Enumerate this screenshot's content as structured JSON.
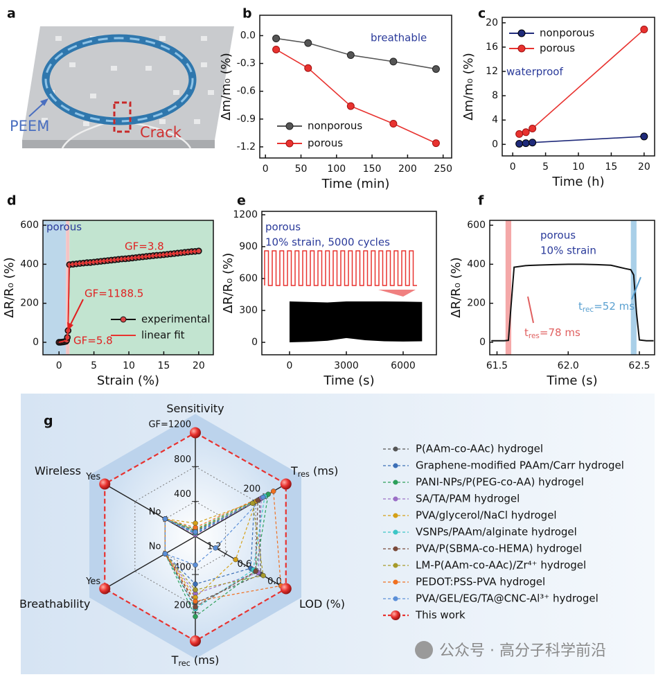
{
  "illustration": {
    "panel": "a",
    "texts": [
      "PEEM",
      "Crack"
    ]
  },
  "watermark": "公众号 · 高分子科学前沿",
  "chart_data": [
    {
      "type": "line",
      "panel": "b",
      "xlabel": "Time (min)",
      "ylabel": "Δm/m₀ (%)",
      "x": [
        15,
        60,
        120,
        180,
        240
      ],
      "series": [
        {
          "name": "nonporous",
          "color": "#555555",
          "marker": true,
          "values": [
            -0.03,
            -0.08,
            -0.21,
            -0.28,
            -0.36
          ]
        },
        {
          "name": "porous",
          "color": "#e8322f",
          "marker": true,
          "values": [
            -0.15,
            -0.35,
            -0.76,
            -0.95,
            -1.16
          ]
        }
      ],
      "xlim": [
        -8,
        262
      ],
      "xticks": [
        0,
        50,
        100,
        150,
        200,
        250
      ],
      "ylim": [
        -1.32,
        0.22
      ],
      "yticks": [
        {
          "value": 0,
          "label": "0.0"
        },
        -0.3,
        -0.6,
        -0.9,
        -1.2
      ],
      "legend": "lower left",
      "annotations": [
        "breathable"
      ]
    },
    {
      "type": "line",
      "panel": "c",
      "xlabel": "Time (h)",
      "ylabel": "Δm/m₀ (%)",
      "x": [
        1,
        2,
        3,
        20
      ],
      "series": [
        {
          "name": "nonporous",
          "color": "#1f2a7a",
          "marker": true,
          "values": [
            0.1,
            0.2,
            0.3,
            1.3
          ]
        },
        {
          "name": "porous",
          "color": "#e8322f",
          "marker": true,
          "values": [
            1.7,
            2.0,
            2.6,
            18.9
          ]
        }
      ],
      "xlim": [
        -1.6,
        21.6
      ],
      "xticks": [
        0,
        5,
        10,
        15,
        20
      ],
      "ylim": [
        -1.9,
        20.9
      ],
      "yticks": [
        0,
        4,
        8,
        12,
        16,
        20
      ],
      "legend": "upper left",
      "annotations": [
        "waterproof"
      ]
    },
    {
      "type": "line",
      "panel": "d",
      "xlabel": "Strain (%)",
      "ylabel": "ΔR/R₀ (%)",
      "regions": [
        {
          "x": [
            -2.3,
            1.0
          ],
          "color": "#bcd7ea"
        },
        {
          "x": [
            1.0,
            1.5
          ],
          "color": "#f4c4c4"
        },
        {
          "x": [
            1.5,
            22.1
          ],
          "color": "#c2e4d0"
        }
      ],
      "series": [
        {
          "name": "experimental",
          "color": "#111111",
          "marker": true,
          "x": [
            0,
            0.2,
            0.4,
            0.6,
            0.8,
            1.0,
            1.1,
            1.2,
            1.3,
            1.5,
            2,
            2.5,
            3,
            3.5,
            4,
            4.5,
            5,
            5.5,
            6,
            6.5,
            7,
            7.5,
            8,
            8.5,
            9,
            9.5,
            10,
            10.5,
            11,
            11.5,
            12,
            12.5,
            13,
            13.5,
            14,
            14.5,
            15,
            15.5,
            16,
            16.5,
            17,
            17.5,
            18,
            18.5,
            19,
            19.5,
            20
          ],
          "values": [
            0,
            0,
            1,
            2,
            3,
            5,
            10,
            25,
            60,
            398,
            400,
            402,
            404,
            406,
            408,
            409,
            411,
            413,
            415,
            417,
            419,
            421,
            423,
            425,
            427,
            428,
            430,
            432,
            434,
            436,
            438,
            440,
            442,
            444,
            446,
            447,
            449,
            451,
            453,
            455,
            457,
            459,
            461,
            463,
            465,
            466,
            468
          ]
        },
        {
          "name": "linear fit",
          "color": "#e8322f",
          "marker": false,
          "x": [
            0,
            1.1,
            1.3,
            1.45,
            20
          ],
          "values": [
            0,
            10,
            60,
            398,
            468
          ]
        }
      ],
      "xlim": [
        -2.3,
        22.1
      ],
      "xticks": [
        0,
        5,
        10,
        15,
        20
      ],
      "ylim": [
        -64,
        625
      ],
      "yticks": [
        0,
        200,
        400,
        600
      ],
      "legend": "lower right",
      "annotations": [
        "porous",
        "GF=3.8",
        "GF=1188.5",
        "GF=5.8"
      ]
    },
    {
      "type": "area",
      "panel": "e",
      "xlabel": "Time (s)",
      "ylabel": "ΔR/R₀ (%)",
      "band": {
        "color": "#000000",
        "x": [
          0,
          1000,
          2000,
          3000,
          4000,
          5000,
          6000,
          7000
        ],
        "upper": [
          385,
          380,
          375,
          385,
          385,
          385,
          383,
          380
        ],
        "lower": [
          0,
          5,
          15,
          40,
          20,
          10,
          8,
          10
        ]
      },
      "series": [],
      "xlim": [
        -1463,
        7757
      ],
      "xticks": [
        0,
        3000,
        6000
      ],
      "ylim": [
        -117,
        1232
      ],
      "yticks": [
        0,
        300,
        600,
        900,
        1200
      ],
      "annotations": [
        "porous",
        "10% strain, 5000 cycles"
      ]
    },
    {
      "type": "line",
      "panel": "f",
      "xlabel": "Time (s)",
      "ylabel": "ΔR/R₀ (%)",
      "regions": [
        {
          "x": [
            61.56,
            61.6
          ],
          "color": "#f4a8a8"
        },
        {
          "x": [
            62.44,
            62.48
          ],
          "color": "#a9cfe8"
        }
      ],
      "series": [
        {
          "color": "#111111",
          "marker": false,
          "x": [
            61.46,
            61.5,
            61.55,
            61.58,
            61.6,
            61.62,
            61.7,
            61.8,
            61.9,
            62.0,
            62.1,
            62.2,
            62.3,
            62.4,
            62.44,
            62.46,
            62.48,
            62.5,
            62.55,
            62.6
          ],
          "values": [
            8,
            8,
            8,
            10,
            200,
            385,
            393,
            396,
            398,
            400,
            400,
            398,
            395,
            378,
            372,
            345,
            150,
            12,
            8,
            8
          ]
        }
      ],
      "xlim": [
        61.449,
        62.607
      ],
      "xticks": [
        61.5,
        {
          "value": 62,
          "label": "62.0"
        },
        62.5
      ],
      "ylim": [
        -64,
        625
      ],
      "yticks": [
        0,
        200,
        400,
        600
      ],
      "annotations": [
        "porous",
        "10% strain"
      ],
      "time_labels": [
        [
          "t",
          "res",
          "=78 ms"
        ],
        [
          "t",
          "rec",
          "=52 ms"
        ]
      ]
    },
    {
      "type": "radar",
      "panel": "g",
      "axes": [
        {
          "label": [
            "Sensitivity"
          ],
          "lim": [
            0,
            1200
          ],
          "ticks": [
            400,
            800,
            {
              "value": 1200,
              "label": "GF=1200"
            }
          ]
        },
        {
          "label": [
            "T",
            "res",
            " (ms)"
          ],
          "lim": [
            600,
            78
          ],
          "ticks": [
            200
          ]
        },
        {
          "label": [
            "LOD (%)"
          ],
          "lim": [
            1.8,
            0
          ],
          "ticks": [
            1.2,
            0.6,
            {
              "value": 0,
              "label": "0.0"
            }
          ]
        },
        {
          "label": [
            "T",
            "rec",
            " (ms)"
          ],
          "lim": [
            600,
            52
          ],
          "ticks": [
            400,
            200
          ]
        },
        {
          "label": [
            "Breathability"
          ],
          "lim": [
            -0.5,
            1
          ],
          "ticks": [
            {
              "value": 0,
              "label": "No"
            },
            {
              "value": 1,
              "label": "Yes"
            }
          ]
        },
        {
          "label": [
            "Wireless"
          ],
          "lim": [
            -0.5,
            1
          ],
          "ticks": [
            {
              "value": 0,
              "label": "No"
            },
            {
              "value": 1,
              "label": "Yes"
            }
          ]
        }
      ],
      "series": [
        {
          "name": "P(AAm-co-AAc) hydrogel",
          "color": "#555555",
          "values": [
            60,
            230,
            0.5,
            250,
            0,
            0
          ]
        },
        {
          "name": "Graphene-modified PAAm/Carr hydrogel",
          "color": "#3b6fb6",
          "values": [
            30,
            260,
            0.7,
            350,
            0,
            0
          ]
        },
        {
          "name": "PANI-NPs/P(PEG-co-AA) hydrogel",
          "color": "#2ca05a",
          "values": [
            80,
            180,
            0.6,
            180,
            0,
            0
          ]
        },
        {
          "name": "SA/TA/PAM hydrogel",
          "color": "#9b6fc6",
          "values": [
            20,
            220,
            0.55,
            300,
            0,
            0
          ]
        },
        {
          "name": "PVA/glycerol/NaCl hydrogel",
          "color": "#d4a017",
          "values": [
            150,
            250,
            1.0,
            280,
            0,
            0
          ]
        },
        {
          "name": "VSNPs/PAAm/alginate hydrogel",
          "color": "#3cc6c6",
          "values": [
            40,
            200,
            0.65,
            220,
            0,
            0
          ]
        },
        {
          "name": "PVA/P(SBMA-co-HEMA) hydrogel",
          "color": "#7a4a3a",
          "values": [
            50,
            240,
            0.6,
            230,
            0,
            0
          ]
        },
        {
          "name": "LM-P(AAm-co-AAc)/Zr⁴⁺ hydrogel",
          "color": "#a69a2a",
          "values": [
            70,
            270,
            0.45,
            320,
            0,
            0
          ]
        },
        {
          "name": "PEDOT:PSS-PVA hydrogel",
          "color": "#f07020",
          "values": [
            100,
            150,
            0.1,
            260,
            0,
            0
          ]
        },
        {
          "name": "PVA/GEL/EG/TA@CNC-Al³⁺ hydrogel",
          "color": "#5b8fd8",
          "values": [
            50,
            210,
            1.4,
            450,
            0,
            0
          ]
        },
        {
          "name": "This work",
          "color": "#e8322f",
          "values": [
            1188.5,
            78,
            0,
            52,
            1,
            1
          ]
        }
      ]
    }
  ]
}
